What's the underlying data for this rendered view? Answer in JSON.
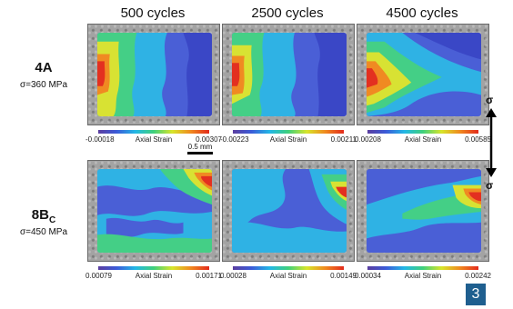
{
  "columns": [
    "500 cycles",
    "2500 cycles",
    "4500 cycles"
  ],
  "rows": [
    {
      "label": "4A",
      "label_sub": "",
      "stress": "σ=360 MPa",
      "scales": [
        {
          "min": "-0.00018",
          "label": "Axial Strain",
          "max": "0.00307"
        },
        {
          "min": "-0.00223",
          "label": "Axial Strain",
          "max": "0.00211"
        },
        {
          "min": "0.00208",
          "label": "Axial Strain",
          "max": "0.00585"
        }
      ]
    },
    {
      "label": "8B",
      "label_sub": "C",
      "stress": "σ=450 MPa",
      "scales": [
        {
          "min": "0.00079",
          "label": "Axial Strain",
          "max": "0.00171"
        },
        {
          "min": "0.00028",
          "label": "Axial Strain",
          "max": "0.00149"
        },
        {
          "min": "0.00034",
          "label": "Axial Strain",
          "max": "0.00242"
        }
      ]
    }
  ],
  "scale_bar": "0.5 mm",
  "loading_axis": {
    "top": "σ",
    "bottom": "σ"
  },
  "page_number": "3",
  "colors": {
    "badge": "#1f5f8f",
    "colormap": [
      "#5b3ea0",
      "#3b5bd8",
      "#22b7e6",
      "#3fd07b",
      "#d7e52a",
      "#f08a1f",
      "#e32a1c"
    ]
  }
}
